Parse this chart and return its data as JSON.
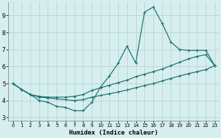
{
  "xlabel": "Humidex (Indice chaleur)",
  "ylabel": "",
  "background_color": "#d6eeee",
  "grid_color": "#b8d8d8",
  "line_color": "#1a7070",
  "xlim": [
    -0.5,
    23.5
  ],
  "ylim": [
    2.8,
    9.8
  ],
  "yticks": [
    3,
    4,
    5,
    6,
    7,
    8,
    9
  ],
  "xticks": [
    0,
    1,
    2,
    3,
    4,
    5,
    6,
    7,
    8,
    9,
    10,
    11,
    12,
    13,
    14,
    15,
    16,
    17,
    18,
    19,
    20,
    21,
    22,
    23
  ],
  "line1_x": [
    0,
    1,
    2,
    3,
    4,
    5,
    6,
    7,
    8,
    9,
    10,
    11,
    12,
    13,
    14,
    15,
    16,
    17,
    18,
    19,
    20,
    21,
    22,
    23
  ],
  "line1_y": [
    5.0,
    4.65,
    4.35,
    4.0,
    3.9,
    3.65,
    3.6,
    3.4,
    3.4,
    3.9,
    4.8,
    5.45,
    6.2,
    7.2,
    6.2,
    9.2,
    9.5,
    8.55,
    7.45,
    7.0,
    6.95,
    6.95,
    6.95,
    6.05
  ],
  "line2_x": [
    0,
    1,
    2,
    3,
    4,
    5,
    6,
    7,
    8,
    9,
    10,
    11,
    12,
    13,
    14,
    15,
    16,
    17,
    18,
    19,
    20,
    21,
    22,
    23
  ],
  "line2_y": [
    5.0,
    4.65,
    4.35,
    4.25,
    4.2,
    4.2,
    4.2,
    4.25,
    4.35,
    4.6,
    4.75,
    4.9,
    5.05,
    5.2,
    5.4,
    5.55,
    5.7,
    5.85,
    6.05,
    6.25,
    6.45,
    6.6,
    6.7,
    6.05
  ],
  "line3_x": [
    0,
    1,
    2,
    3,
    4,
    5,
    6,
    7,
    8,
    9,
    10,
    11,
    12,
    13,
    14,
    15,
    16,
    17,
    18,
    19,
    20,
    21,
    22,
    23
  ],
  "line3_y": [
    5.0,
    4.65,
    4.35,
    4.2,
    4.15,
    4.1,
    4.05,
    4.0,
    4.05,
    4.2,
    4.3,
    4.4,
    4.5,
    4.62,
    4.75,
    4.88,
    5.0,
    5.15,
    5.3,
    5.45,
    5.58,
    5.7,
    5.82,
    6.05
  ],
  "marker": "+",
  "markersize": 3,
  "linewidth": 0.9
}
